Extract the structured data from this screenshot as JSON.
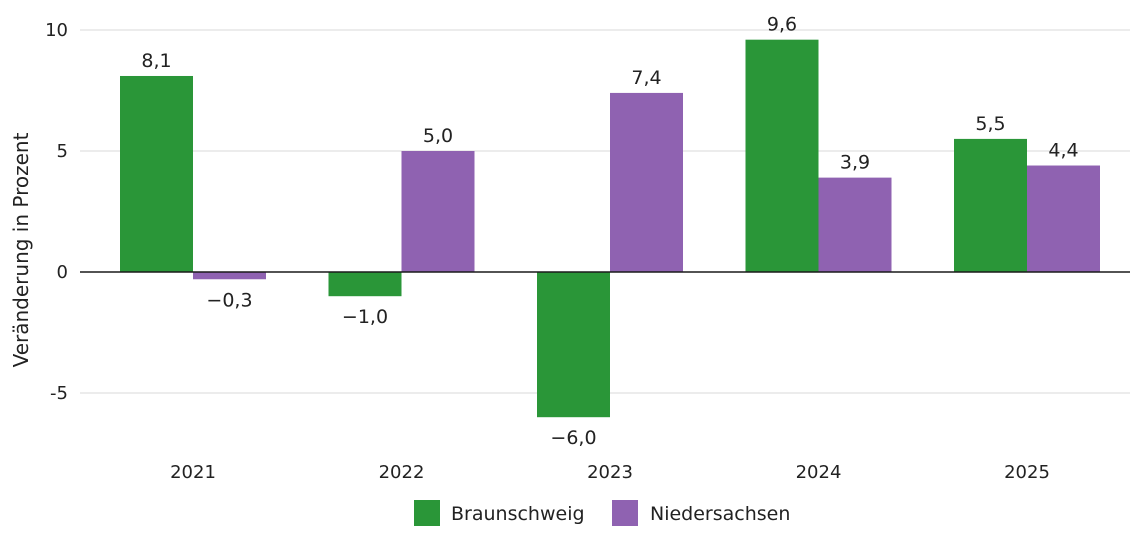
{
  "chart_data": {
    "type": "bar",
    "title": "",
    "xlabel": "",
    "ylabel": "Veränderung in Prozent",
    "categories": [
      "2021",
      "2022",
      "2023",
      "2024",
      "2025"
    ],
    "series": [
      {
        "name": "Braunschweig",
        "color": "#2a9638",
        "values": [
          8.1,
          -1.0,
          -6.0,
          9.6,
          5.5
        ],
        "labels": [
          "8,1",
          "−1,0",
          "−6,0",
          "9,6",
          "5,5"
        ]
      },
      {
        "name": "Niedersachsen",
        "color": "#8f62b1",
        "values": [
          -0.3,
          5.0,
          7.4,
          3.9,
          4.4
        ],
        "labels": [
          "−0,3",
          "5,0",
          "7,4",
          "3,9",
          "4,4"
        ]
      }
    ],
    "ylim": [
      -7.2,
      10
    ],
    "yticks": [
      10,
      5,
      0,
      -5
    ],
    "ytick_labels": [
      "10",
      "5",
      "0",
      "-5"
    ],
    "grid": true,
    "legend_position": "bottom-center"
  }
}
